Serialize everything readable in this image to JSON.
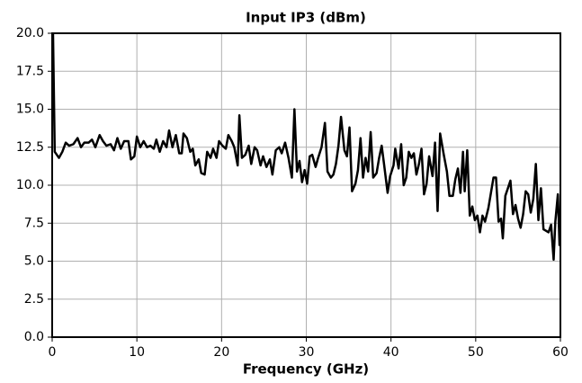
{
  "chart_data": {
    "type": "line",
    "title": "Input IP3 (dBm)",
    "x_label": "Frequency (GHz)",
    "x": [
      0.1,
      0.3,
      0.8,
      1.2,
      1.6,
      2.0,
      2.5,
      3.0,
      3.4,
      3.8,
      4.3,
      4.7,
      5.1,
      5.6,
      6.0,
      6.4,
      6.9,
      7.3,
      7.7,
      8.1,
      8.5,
      9.0,
      9.3,
      9.7,
      10.0,
      10.4,
      10.8,
      11.2,
      11.6,
      12.0,
      12.3,
      12.7,
      13.1,
      13.5,
      13.8,
      14.2,
      14.6,
      15.0,
      15.3,
      15.5,
      15.9,
      16.3,
      16.6,
      16.9,
      17.3,
      17.6,
      18.0,
      18.3,
      18.7,
      19.0,
      19.4,
      19.7,
      20.1,
      20.5,
      20.8,
      21.2,
      21.5,
      21.9,
      22.1,
      22.4,
      22.8,
      23.2,
      23.5,
      23.9,
      24.2,
      24.6,
      24.9,
      25.3,
      25.7,
      26.0,
      26.4,
      26.8,
      27.1,
      27.5,
      27.9,
      28.3,
      28.6,
      28.9,
      29.2,
      29.5,
      29.8,
      30.1,
      30.4,
      30.7,
      31.1,
      31.4,
      31.8,
      32.2,
      32.5,
      32.9,
      33.2,
      33.5,
      33.8,
      34.1,
      34.5,
      34.8,
      35.1,
      35.4,
      35.8,
      36.1,
      36.4,
      36.7,
      37.0,
      37.3,
      37.6,
      37.9,
      38.3,
      38.6,
      38.9,
      39.2,
      39.6,
      39.9,
      40.3,
      40.5,
      40.9,
      41.2,
      41.5,
      41.8,
      42.1,
      42.4,
      42.7,
      43.0,
      43.3,
      43.6,
      43.9,
      44.2,
      44.5,
      44.9,
      45.2,
      45.5,
      45.8,
      46.2,
      46.6,
      46.9,
      47.3,
      47.6,
      47.9,
      48.2,
      48.5,
      48.7,
      49.0,
      49.3,
      49.6,
      49.9,
      50.2,
      50.5,
      50.8,
      51.1,
      51.5,
      51.8,
      52.1,
      52.4,
      52.7,
      53.0,
      53.2,
      53.5,
      53.8,
      54.1,
      54.4,
      54.7,
      55.0,
      55.3,
      55.6,
      55.9,
      56.2,
      56.5,
      56.8,
      57.1,
      57.4,
      57.7,
      58.0,
      58.3,
      58.6,
      58.9,
      59.2,
      59.4,
      59.7,
      59.9
    ],
    "series": [
      {
        "color": "#000000",
        "values": [
          20,
          12.2,
          11.8,
          12.2,
          12.8,
          12.6,
          12.7,
          13.1,
          12.5,
          12.8,
          12.8,
          13.0,
          12.5,
          13.3,
          12.9,
          12.6,
          12.7,
          12.3,
          13.1,
          12.4,
          12.9,
          12.9,
          11.7,
          11.9,
          13.2,
          12.5,
          12.9,
          12.5,
          12.6,
          12.4,
          13.0,
          12.2,
          12.9,
          12.5,
          13.6,
          12.5,
          13.3,
          12.1,
          12.1,
          13.4,
          13.1,
          12.2,
          12.4,
          11.3,
          11.7,
          10.8,
          10.7,
          12.2,
          11.8,
          12.4,
          11.8,
          12.9,
          12.6,
          12.4,
          13.3,
          12.9,
          12.5,
          11.3,
          14.6,
          11.8,
          12.0,
          12.6,
          11.4,
          12.5,
          12.3,
          11.3,
          11.9,
          11.2,
          11.7,
          10.7,
          12.3,
          12.5,
          12.1,
          12.8,
          11.8,
          10.5,
          15.0,
          10.9,
          11.6,
          10.2,
          11.0,
          10.1,
          11.9,
          12.0,
          11.2,
          11.8,
          12.5,
          14.1,
          10.9,
          10.5,
          10.7,
          11.4,
          12.6,
          14.5,
          12.3,
          11.9,
          13.8,
          9.6,
          10.1,
          11.0,
          13.1,
          10.5,
          11.8,
          10.9,
          13.5,
          10.5,
          10.8,
          11.8,
          12.6,
          11.3,
          9.5,
          10.6,
          11.3,
          12.4,
          11.1,
          12.7,
          10.0,
          10.5,
          12.2,
          11.8,
          12.1,
          10.7,
          11.4,
          12.4,
          9.4,
          10.1,
          11.9,
          10.6,
          12.8,
          8.3,
          13.4,
          12.1,
          10.9,
          9.3,
          9.3,
          10.4,
          11.1,
          9.5,
          12.2,
          9.6,
          12.3,
          8.0,
          8.6,
          7.7,
          8.0,
          6.9,
          8.0,
          7.6,
          8.5,
          9.5,
          10.5,
          10.5,
          7.6,
          7.8,
          6.5,
          9.3,
          9.8,
          10.3,
          8.1,
          8.7,
          7.8,
          7.2,
          8.1,
          9.6,
          9.4,
          8.2,
          9.1,
          11.4,
          7.7,
          9.8,
          7.1,
          7.0,
          6.9,
          7.4,
          5.1,
          7.6,
          9.4,
          6.0
        ]
      }
    ],
    "xlim": [
      0,
      60
    ],
    "xticks": [
      0,
      10,
      20,
      30,
      40,
      50,
      60
    ],
    "ylim": [
      0,
      20
    ],
    "yticks": [
      {
        "value": 0,
        "label": "0.0"
      },
      2.5,
      {
        "value": 5,
        "label": "5.0"
      },
      7.5,
      {
        "value": 10,
        "label": "10.0"
      },
      12.5,
      {
        "value": 15,
        "label": "15.0"
      },
      17.5,
      {
        "value": 20,
        "label": "20.0"
      }
    ],
    "grid": true
  }
}
